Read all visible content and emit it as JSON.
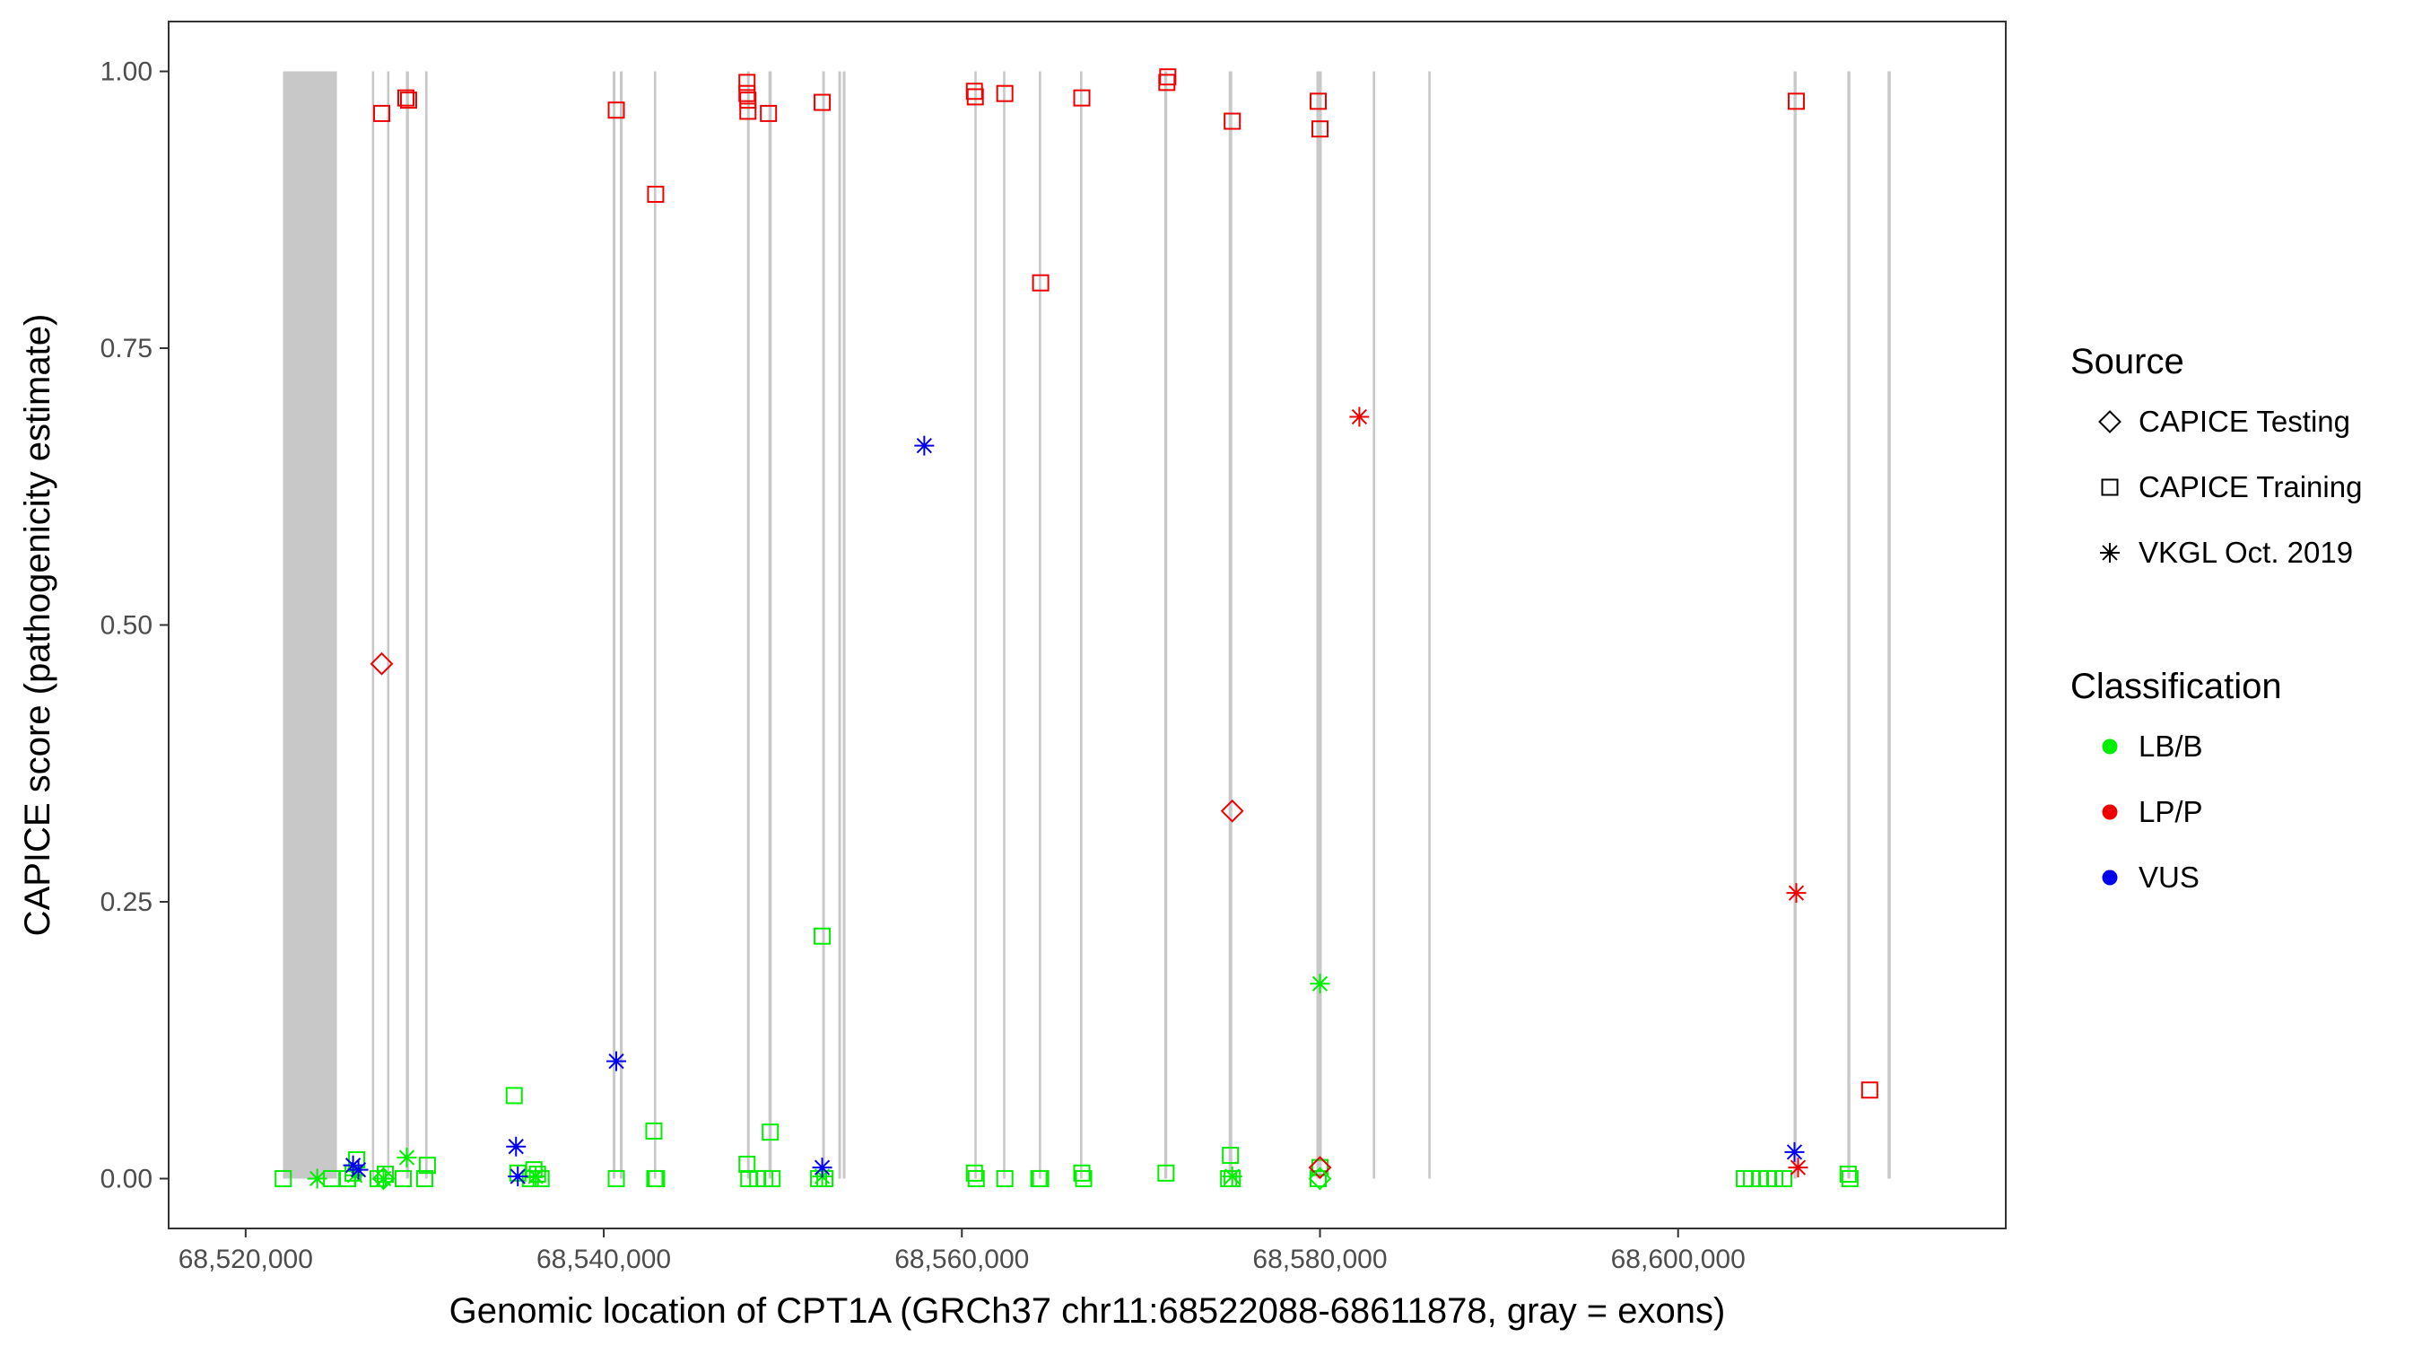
{
  "chart_data": {
    "type": "scatter",
    "xlabel": "Genomic location of CPT1A (GRCh37 chr11:68522088-68611878, gray = exons)",
    "ylabel": "CAPICE score (pathogenicity estimate)",
    "xlim": [
      68515700,
      68618300
    ],
    "ylim": [
      -0.045,
      1.045
    ],
    "x_ticks": [
      68520000,
      68540000,
      68560000,
      68580000,
      68600000
    ],
    "x_tick_labels": [
      "68,520,000",
      "68,540,000",
      "68,560,000",
      "68,580,000",
      "68,600,000"
    ],
    "y_ticks": [
      0,
      0.25,
      0.5,
      0.75,
      1.0
    ],
    "y_tick_labels": [
      "0.00",
      "0.25",
      "0.50",
      "0.75",
      "1.00"
    ],
    "grid": false,
    "exons": [
      [
        68522088,
        68525100
      ],
      [
        68527050,
        68527170
      ],
      [
        68527900,
        68528020
      ],
      [
        68528950,
        68529120
      ],
      [
        68530020,
        68530160
      ],
      [
        68540500,
        68540650
      ],
      [
        68540900,
        68541060
      ],
      [
        68542800,
        68542900
      ],
      [
        68548000,
        68548150
      ],
      [
        68549200,
        68549380
      ],
      [
        68552200,
        68552350
      ],
      [
        68553100,
        68553250
      ],
      [
        68553350,
        68553500
      ],
      [
        68560700,
        68560820
      ],
      [
        68562300,
        68562420
      ],
      [
        68564300,
        68564420
      ],
      [
        68566600,
        68566720
      ],
      [
        68571300,
        68571470
      ],
      [
        68574900,
        68575100
      ],
      [
        68579800,
        68580100
      ],
      [
        68582950,
        68583070
      ],
      [
        68586050,
        68586170
      ],
      [
        68606450,
        68606620
      ],
      [
        68609450,
        68609620
      ],
      [
        68611700,
        68611878
      ]
    ],
    "legend": {
      "placement": "right",
      "source_title": "Source",
      "source_entries": [
        {
          "label": "CAPICE Testing",
          "shape": "diamond"
        },
        {
          "label": "CAPICE Training",
          "shape": "square"
        },
        {
          "label": "VKGL Oct. 2019",
          "shape": "asterisk"
        }
      ],
      "class_title": "Classification",
      "class_entries": [
        {
          "label": "LB/B",
          "color": "#00ee00"
        },
        {
          "label": "LP/P",
          "color": "#ee0000"
        },
        {
          "label": "VUS",
          "color": "#0000ee"
        }
      ]
    },
    "series": [
      {
        "name": "CAPICE Training",
        "shape": "square",
        "color": "#ee0000",
        "points": [
          [
            68527600,
            0.962
          ],
          [
            68528950,
            0.976
          ],
          [
            68529100,
            0.974
          ],
          [
            68540700,
            0.965
          ],
          [
            68542900,
            0.889
          ],
          [
            68548000,
            0.99
          ],
          [
            68548000,
            0.98
          ],
          [
            68548050,
            0.974
          ],
          [
            68548050,
            0.964
          ],
          [
            68549200,
            0.962
          ],
          [
            68552200,
            0.972
          ],
          [
            68560700,
            0.982
          ],
          [
            68560750,
            0.977
          ],
          [
            68562400,
            0.98
          ],
          [
            68564400,
            0.809
          ],
          [
            68566700,
            0.976
          ],
          [
            68571500,
            0.995
          ],
          [
            68571450,
            0.99
          ],
          [
            68575100,
            0.955
          ],
          [
            68579900,
            0.973
          ],
          [
            68580000,
            0.948
          ],
          [
            68606600,
            0.973
          ],
          [
            68610700,
            0.08
          ]
        ]
      },
      {
        "name": "CAPICE Training",
        "shape": "square",
        "color": "#00ee00",
        "points": [
          [
            68522100,
            0.0
          ],
          [
            68524800,
            0.0
          ],
          [
            68525700,
            0.0
          ],
          [
            68526000,
            0.005
          ],
          [
            68526200,
            0.017
          ],
          [
            68527400,
            0.0
          ],
          [
            68527800,
            0.004
          ],
          [
            68528800,
            0.0
          ],
          [
            68530000,
            0.0
          ],
          [
            68530150,
            0.012
          ],
          [
            68535000,
            0.075
          ],
          [
            68535200,
            0.005
          ],
          [
            68535900,
            0.0
          ],
          [
            68536100,
            0.008
          ],
          [
            68536300,
            0.004
          ],
          [
            68536500,
            0.0
          ],
          [
            68540700,
            0.0
          ],
          [
            68542800,
            0.043
          ],
          [
            68542850,
            0.0
          ],
          [
            68542950,
            0.0
          ],
          [
            68548000,
            0.013
          ],
          [
            68548100,
            0.0
          ],
          [
            68548600,
            0.0
          ],
          [
            68549000,
            0.0
          ],
          [
            68549300,
            0.042
          ],
          [
            68549400,
            0.0
          ],
          [
            68552000,
            0.0
          ],
          [
            68552200,
            0.219
          ],
          [
            68552350,
            0.0
          ],
          [
            68560700,
            0.005
          ],
          [
            68560800,
            0.0
          ],
          [
            68562400,
            0.0
          ],
          [
            68564300,
            0.0
          ],
          [
            68564400,
            0.0
          ],
          [
            68566700,
            0.005
          ],
          [
            68566800,
            0.0
          ],
          [
            68571400,
            0.005
          ],
          [
            68574900,
            0.0
          ],
          [
            68575000,
            0.021
          ],
          [
            68575100,
            0.0
          ],
          [
            68579900,
            0.0
          ],
          [
            68580000,
            0.01
          ],
          [
            68603700,
            0.0
          ],
          [
            68604100,
            0.0
          ],
          [
            68604600,
            0.0
          ],
          [
            68605000,
            0.0
          ],
          [
            68605400,
            0.0
          ],
          [
            68605900,
            0.0
          ],
          [
            68609500,
            0.004
          ],
          [
            68609600,
            0.0
          ]
        ]
      },
      {
        "name": "CAPICE Testing",
        "shape": "diamond",
        "color": "#ee0000",
        "points": [
          [
            68527600,
            0.465
          ],
          [
            68575100,
            0.332
          ],
          [
            68580000,
            0.01
          ]
        ]
      },
      {
        "name": "CAPICE Testing",
        "shape": "diamond",
        "color": "#00ee00",
        "points": [
          [
            68527700,
            0.0
          ],
          [
            68580000,
            0.0
          ]
        ]
      },
      {
        "name": "VKGL Oct. 2019",
        "shape": "asterisk",
        "color": "#00ee00",
        "points": [
          [
            68524000,
            0.0
          ],
          [
            68526100,
            0.003
          ],
          [
            68527700,
            0.0
          ],
          [
            68529000,
            0.019
          ],
          [
            68536200,
            0.002
          ],
          [
            68552200,
            0.002
          ],
          [
            68575100,
            0.002
          ],
          [
            68580000,
            0.176
          ]
        ]
      },
      {
        "name": "VKGL Oct. 2019",
        "shape": "asterisk",
        "color": "#ee0000",
        "points": [
          [
            68582200,
            0.688
          ],
          [
            68606600,
            0.258
          ],
          [
            68606700,
            0.01
          ]
        ]
      },
      {
        "name": "VKGL Oct. 2019",
        "shape": "asterisk",
        "color": "#0000ee",
        "points": [
          [
            68526000,
            0.012
          ],
          [
            68526300,
            0.008
          ],
          [
            68535100,
            0.029
          ],
          [
            68535200,
            0.002
          ],
          [
            68540700,
            0.106
          ],
          [
            68552200,
            0.01
          ],
          [
            68557900,
            0.662
          ],
          [
            68606500,
            0.024
          ]
        ]
      }
    ]
  }
}
